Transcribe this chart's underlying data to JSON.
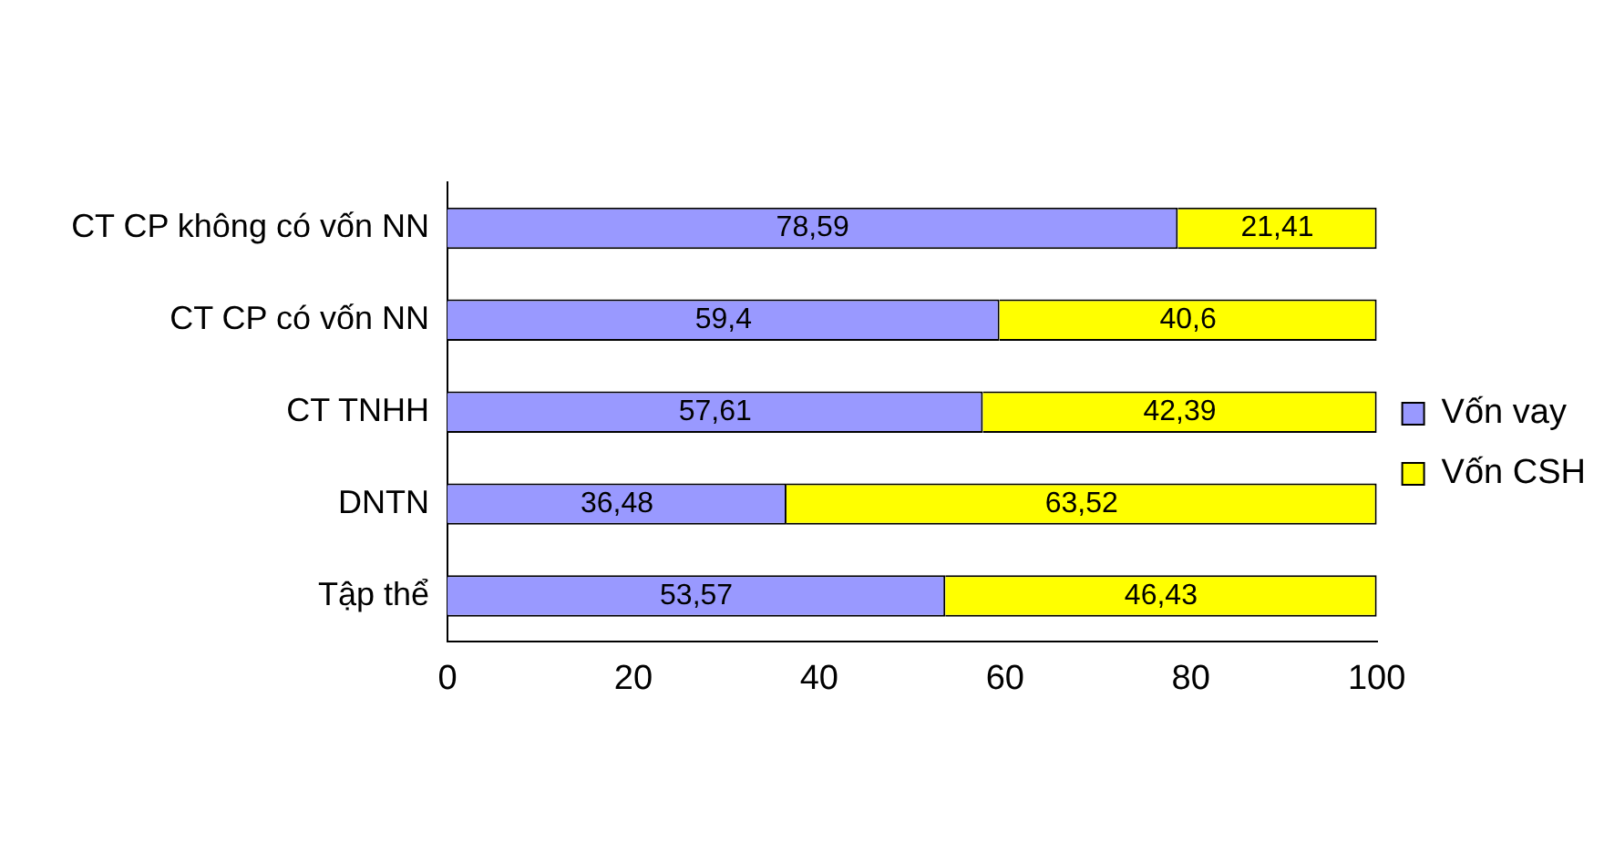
{
  "chart_data": {
    "type": "bar",
    "orientation": "horizontal",
    "stacked": true,
    "categories": [
      "CT CP không có vốn NN",
      "CT CP có vốn NN",
      "CT TNHH",
      "DNTN",
      "Tập thể"
    ],
    "series": [
      {
        "name": "Vốn vay",
        "color": "#9999ff",
        "values": [
          78.59,
          59.4,
          57.61,
          36.48,
          53.57
        ],
        "value_labels": [
          "78,59",
          "59,4",
          "57,61",
          "36,48",
          "53,57"
        ]
      },
      {
        "name": "Vốn CSH",
        "color": "#ffff00",
        "values": [
          21.41,
          40.6,
          42.39,
          63.52,
          46.43
        ],
        "value_labels": [
          "21,41",
          "40,6",
          "42,39",
          "63,52",
          "46,43"
        ]
      }
    ],
    "xlim": [
      0,
      100
    ],
    "xticks": [
      0,
      20,
      40,
      60,
      80,
      100
    ],
    "grid": false,
    "legend": "right"
  }
}
